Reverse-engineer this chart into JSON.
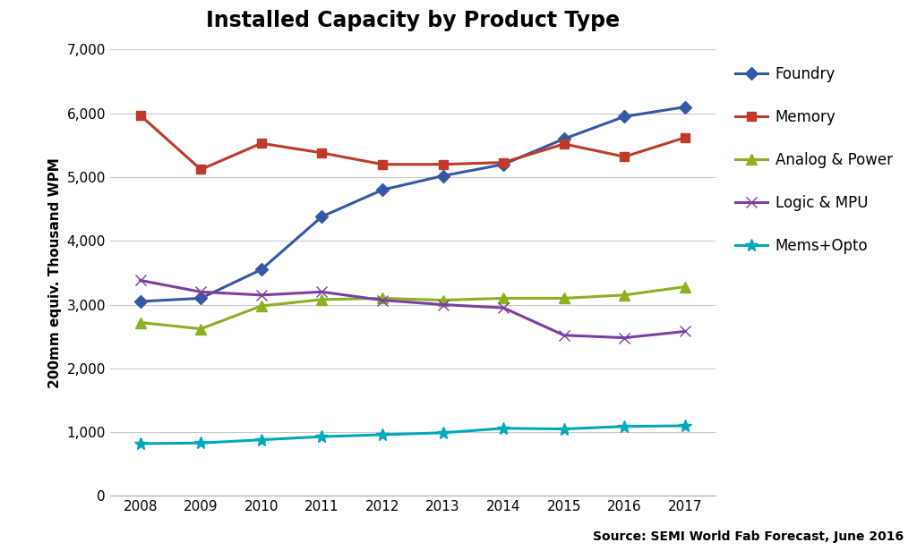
{
  "title": "Installed Capacity by Product Type",
  "ylabel": "200mm equiv. Thousand WPM",
  "source_text": "Source: SEMI World Fab Forecast, June 2016",
  "years": [
    2008,
    2009,
    2010,
    2011,
    2012,
    2013,
    2014,
    2015,
    2016,
    2017
  ],
  "series": [
    {
      "name": "Foundry",
      "color": "#3558A6",
      "marker": "D",
      "markersize": 7,
      "linewidth": 2.2,
      "values": [
        3050,
        3100,
        3550,
        4380,
        4800,
        5020,
        5200,
        5600,
        5950,
        6100
      ]
    },
    {
      "name": "Memory",
      "color": "#C0392B",
      "marker": "s",
      "markersize": 7,
      "linewidth": 2.2,
      "values": [
        5970,
        5120,
        5530,
        5380,
        5200,
        5200,
        5230,
        5520,
        5320,
        5620
      ]
    },
    {
      "name": "Analog & Power",
      "color": "#8DB020",
      "marker": "^",
      "markersize": 8,
      "linewidth": 2.2,
      "values": [
        2720,
        2620,
        2980,
        3080,
        3100,
        3070,
        3100,
        3100,
        3150,
        3280
      ]
    },
    {
      "name": "Logic & MPU",
      "color": "#7B3FA0",
      "marker": "x",
      "markersize": 8,
      "linewidth": 2.2,
      "values": [
        3380,
        3200,
        3150,
        3200,
        3070,
        3000,
        2950,
        2520,
        2480,
        2580
      ]
    },
    {
      "name": "Mems+Opto",
      "color": "#00AABB",
      "marker": "*",
      "markersize": 10,
      "linewidth": 2.2,
      "values": [
        820,
        830,
        880,
        930,
        960,
        990,
        1060,
        1050,
        1090,
        1100
      ]
    }
  ],
  "ylim": [
    0,
    7000
  ],
  "yticks": [
    0,
    1000,
    2000,
    3000,
    4000,
    5000,
    6000,
    7000
  ],
  "background_color": "#FFFFFF",
  "grid_color": "#C8C8C8",
  "title_fontsize": 17,
  "axis_label_fontsize": 11,
  "tick_fontsize": 11,
  "legend_fontsize": 12,
  "source_fontsize": 10
}
